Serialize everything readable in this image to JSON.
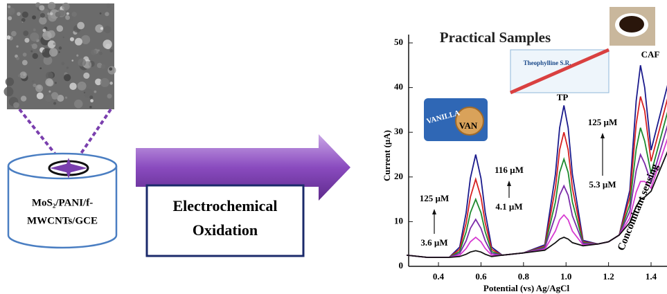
{
  "electrode": {
    "label_lines": [
      "MoS₂/PANI/f-",
      "MWCNTs/GCE"
    ]
  },
  "process_box": {
    "lines": [
      "Electrochemical",
      "Oxidation"
    ]
  },
  "product_labels": {
    "tablet_box": "Theophylline S.R.",
    "biscuit_pack": "VANILLA"
  },
  "chart_data": {
    "type": "line",
    "title": "Practical Samples",
    "x_label": "Potential (vs) Ag/AgCl",
    "y_label": "Current (µA)",
    "x": [
      0.25,
      0.35,
      0.45,
      0.5,
      0.53,
      0.55,
      0.575,
      0.6,
      0.62,
      0.65,
      0.7,
      0.8,
      0.9,
      0.95,
      0.97,
      0.99,
      1.01,
      1.03,
      1.08,
      1.15,
      1.2,
      1.25,
      1.3,
      1.33,
      1.35,
      1.37,
      1.4,
      1.48
    ],
    "xlim": [
      0.25,
      1.47
    ],
    "xticks": [
      0.4,
      0.6,
      0.8,
      {
        "value": 1,
        "label": "1.0"
      },
      1.2,
      1.4
    ],
    "ylim": [
      0,
      50
    ],
    "yticks": [
      0,
      10,
      20,
      30,
      40,
      50
    ],
    "series": [
      {
        "color": "#1a1a8c",
        "values": [
          2.5,
          2,
          2,
          4.3,
          12,
          19.7,
          25,
          19.7,
          12,
          4.3,
          2.5,
          3,
          4.8,
          20.6,
          31,
          36,
          31,
          20.6,
          5.8,
          5,
          5.5,
          7,
          17,
          37,
          45,
          40,
          26,
          41
        ]
      },
      {
        "color": "#d62020",
        "values": [
          2.5,
          2,
          2,
          3.8,
          9.7,
          15.5,
          19.5,
          15.5,
          9.7,
          3.8,
          2.5,
          3,
          4.5,
          17.5,
          26.1,
          30,
          26.1,
          17.5,
          5.5,
          5,
          5.5,
          7,
          15.5,
          31.8,
          38,
          34.8,
          23.5,
          38
        ]
      },
      {
        "color": "#1e8a2e",
        "values": [
          2.5,
          2,
          2,
          3.3,
          7.7,
          12,
          15,
          12,
          7.7,
          3.3,
          2.5,
          3,
          4.3,
          14.4,
          21,
          24,
          21,
          14.4,
          5.3,
          5,
          5.5,
          7,
          13.8,
          26.2,
          31,
          28,
          20.8,
          35
        ]
      },
      {
        "color": "#7a2aa8",
        "values": [
          2.5,
          2,
          2,
          2.9,
          5.7,
          8.5,
          10.5,
          8.5,
          5.7,
          2.9,
          2.5,
          3,
          4.1,
          11.3,
          15.9,
          18,
          15.9,
          11.3,
          5.1,
          5,
          5.5,
          7,
          12.3,
          21.4,
          25,
          23,
          18.8,
          32
        ]
      },
      {
        "color": "#d63ad0",
        "values": [
          2.5,
          2,
          2,
          2.5,
          4,
          5.5,
          6.5,
          5.5,
          4,
          2.5,
          2.5,
          3,
          3.8,
          7.9,
          10.4,
          11.5,
          10.4,
          7.9,
          4.8,
          5,
          5.5,
          7,
          10.8,
          16.6,
          19,
          19,
          17.5,
          29
        ]
      },
      {
        "color": "#111111",
        "values": [
          2.5,
          2,
          2,
          2.2,
          2.7,
          3.2,
          3.5,
          3.2,
          2.7,
          2.2,
          2.5,
          3,
          3.6,
          5.3,
          6.1,
          6.5,
          6.1,
          5.3,
          4.6,
          5,
          5.5,
          7,
          9.8,
          13.4,
          15,
          15.5,
          16.8,
          26
        ]
      }
    ],
    "peak_labels": [
      "VAN",
      "TP",
      "CAF"
    ],
    "concentration_ranges": [
      {
        "from": "3.6 µM",
        "to": "125 µM"
      },
      {
        "from": "4.1 µM",
        "to": "116 µM"
      },
      {
        "from": "5.3 µM",
        "to": "125 µM"
      }
    ],
    "annotation": "Concomitant sensing"
  }
}
